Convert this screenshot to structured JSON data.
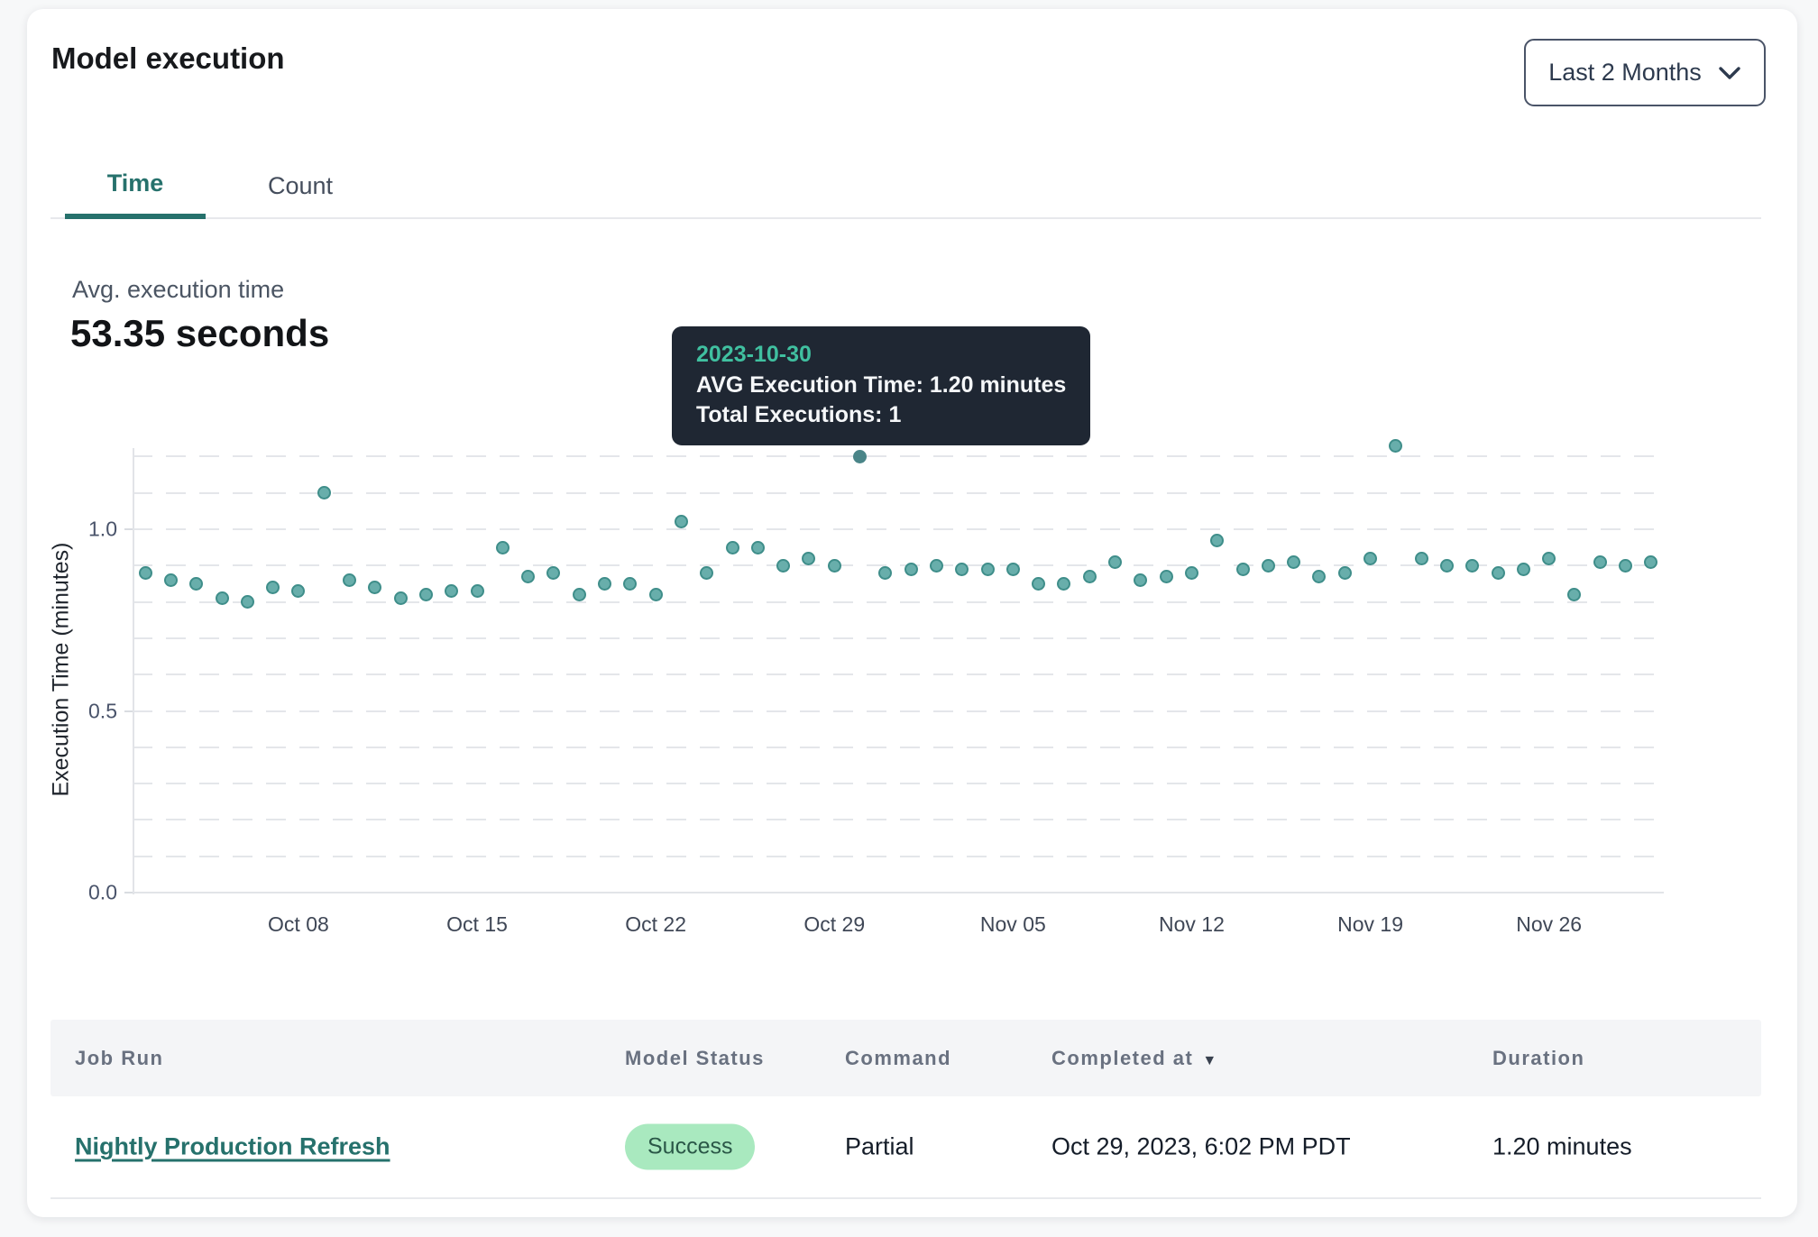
{
  "card": {
    "title": "Model execution"
  },
  "filter": {
    "label": "Last 2 Months"
  },
  "tabs": [
    {
      "label": "Time",
      "active": true
    },
    {
      "label": "Count",
      "active": false
    }
  ],
  "summary": {
    "label": "Avg. execution time",
    "value": "53.35 seconds"
  },
  "tooltip": {
    "date": "2023-10-30",
    "line1": "AVG Execution Time: 1.20 minutes",
    "line2": "Total Executions: 1"
  },
  "chart_data": {
    "type": "scatter",
    "title": "Model execution",
    "xlabel": "",
    "ylabel": "Execution Time (minutes)",
    "ylim": [
      0,
      1.22
    ],
    "grid": "horizontal dashed, step 0.1",
    "legend": "none",
    "start_date": "2023-10-02",
    "x_tick_labels": [
      "Oct 08",
      "Oct 15",
      "Oct 22",
      "Oct 29",
      "Nov 05",
      "Nov 12",
      "Nov 19",
      "Nov 26"
    ],
    "x_tick_day_index": [
      6,
      13,
      20,
      27,
      34,
      41,
      48,
      55
    ],
    "y_tick_labels": [
      "0.0",
      "0.5",
      "1.0"
    ],
    "y_tick_values": [
      0,
      0.5,
      1.0
    ],
    "series": [
      {
        "name": "AVG Execution Time (minutes)",
        "values": [
          0.88,
          0.86,
          0.85,
          0.81,
          0.8,
          0.84,
          0.83,
          1.1,
          0.86,
          0.84,
          0.81,
          0.82,
          0.83,
          0.83,
          0.95,
          0.87,
          0.88,
          0.82,
          0.85,
          0.85,
          0.82,
          1.02,
          0.88,
          0.95,
          0.95,
          0.9,
          0.92,
          0.9,
          1.2,
          0.88,
          0.89,
          0.9,
          0.89,
          0.89,
          0.89,
          0.85,
          0.85,
          0.87,
          0.91,
          0.86,
          0.87,
          0.88,
          0.97,
          0.89,
          0.9,
          0.91,
          0.87,
          0.88,
          0.92,
          1.23,
          0.92,
          0.9,
          0.9,
          0.88,
          0.89,
          0.92,
          0.82,
          0.91,
          0.9,
          0.91
        ]
      }
    ],
    "highlight_index": 28,
    "highlight": {
      "date": "2023-10-30",
      "avg_execution_time_minutes": 1.2,
      "total_executions": 1
    },
    "colors": {
      "point_fill": "#68aeab",
      "point_stroke": "#3f8e8a",
      "highlight_point": "#4a8588",
      "accent_teal": "#26716c",
      "tooltip_bg": "#1f2733",
      "tooltip_date": "#40c0a0"
    }
  },
  "table": {
    "columns": [
      "Job Run",
      "Model Status",
      "Command",
      "Completed at",
      "Duration"
    ],
    "sort_column": "Completed at",
    "sort_direction": "desc",
    "rows": [
      {
        "job_run": "Nightly Production Refresh",
        "model_status": "Success",
        "command": "Partial",
        "completed_at": "Oct 29, 2023, 6:02 PM PDT",
        "duration": "1.20 minutes"
      }
    ],
    "badge_colors": {
      "success_bg": "#a9e9bf",
      "success_text": "#2a5747"
    }
  }
}
